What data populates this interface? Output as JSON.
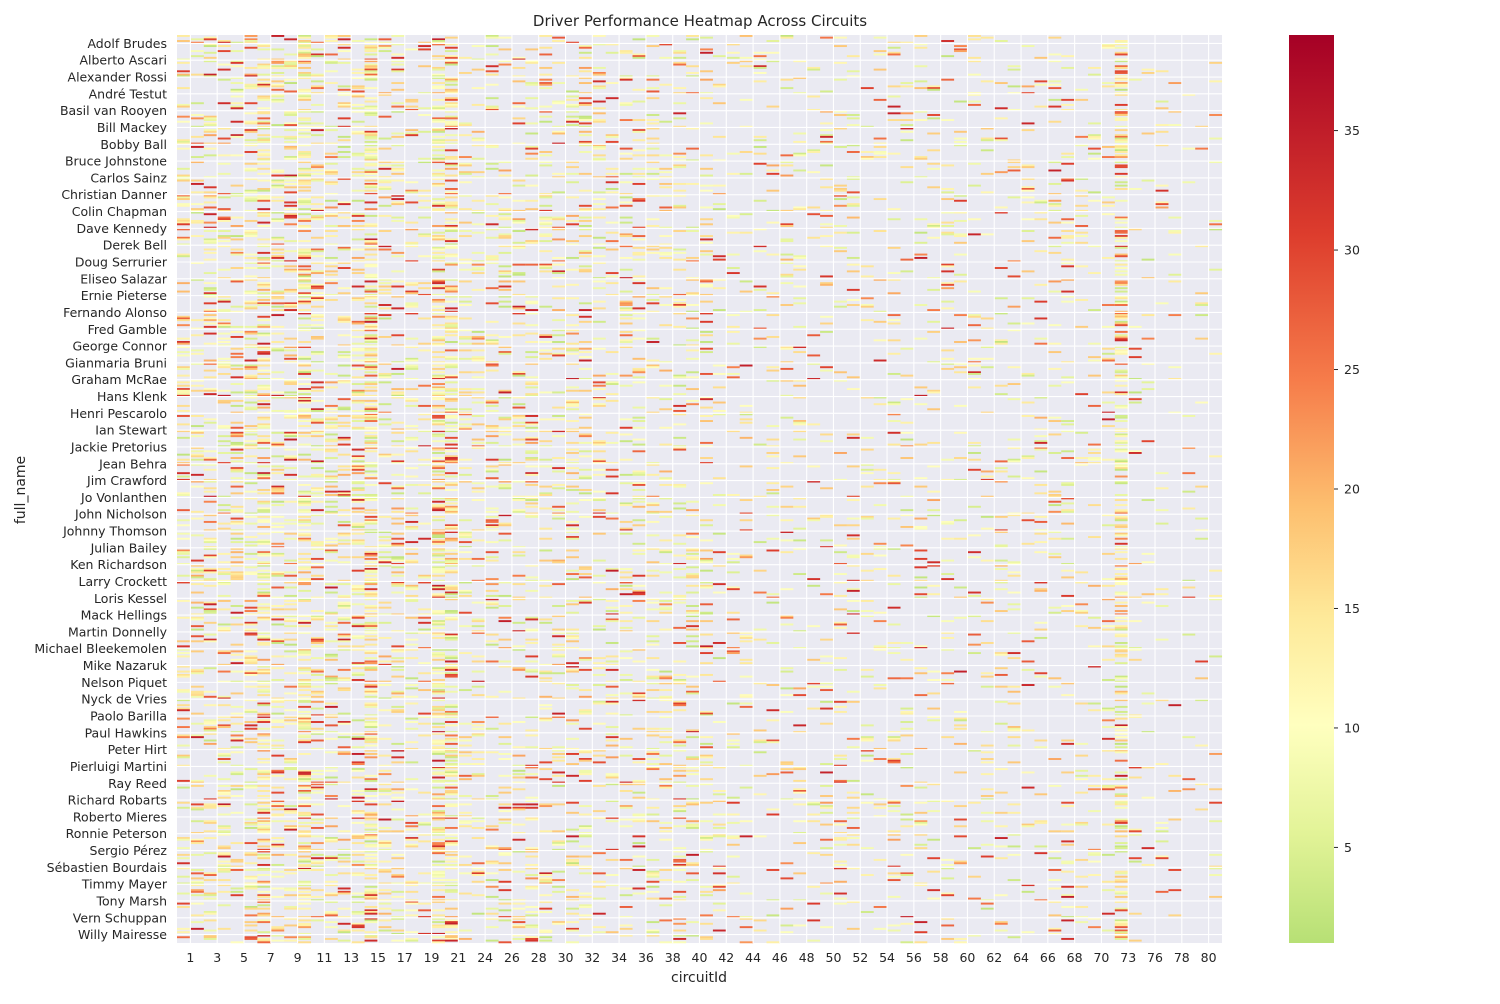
{
  "chart_data": {
    "type": "heatmap",
    "title": "Driver Performance Heatmap Across Circuits",
    "xlabel": "circuitId",
    "ylabel": "full_name",
    "x_tick_labels": [
      "1",
      "3",
      "5",
      "7",
      "9",
      "11",
      "13",
      "15",
      "17",
      "19",
      "21",
      "24",
      "26",
      "28",
      "30",
      "32",
      "34",
      "36",
      "38",
      "40",
      "42",
      "44",
      "46",
      "48",
      "50",
      "52",
      "54",
      "56",
      "58",
      "60",
      "62",
      "64",
      "66",
      "68",
      "70",
      "73",
      "76",
      "78",
      "80"
    ],
    "y_tick_labels": [
      "Adolf Brudes",
      "Alberto Ascari",
      "Alexander Rossi",
      "André Testut",
      "Basil van Rooyen",
      "Bill Mackey",
      "Bobby Ball",
      "Bruce Johnstone",
      "Carlos Sainz",
      "Christian Danner",
      "Colin Chapman",
      "Dave Kennedy",
      "Derek Bell",
      "Doug Serrurier",
      "Eliseo Salazar",
      "Ernie Pieterse",
      "Fernando Alonso",
      "Fred Gamble",
      "George Connor",
      "Gianmaria Bruni",
      "Graham McRae",
      "Hans Klenk",
      "Henri Pescarolo",
      "Ian Stewart",
      "Jackie Pretorius",
      "Jean Behra",
      "Jim Crawford",
      "Jo Vonlanthen",
      "John Nicholson",
      "Johnny Thomson",
      "Julian Bailey",
      "Ken Richardson",
      "Larry Crockett",
      "Loris Kessel",
      "Mack Hellings",
      "Martin Donnelly",
      "Michael Bleekemolen",
      "Mike Nazaruk",
      "Nelson Piquet",
      "Nyck de Vries",
      "Paolo Barilla",
      "Paul Hawkins",
      "Peter Hirt",
      "Pierluigi Martini",
      "Ray Reed",
      "Richard Robarts",
      "Roberto Mieres",
      "Ronnie Peterson",
      "Sergio Pérez",
      "Sébastien Bourdais",
      "Timmy Mayer",
      "Tony Marsh",
      "Vern Schuppan",
      "Willy Mairesse"
    ],
    "n_circuits": 78,
    "n_drivers": 540,
    "colorbar": {
      "colormap": "RdYlGn_r",
      "vmin": 1,
      "vmax": 39,
      "ticks": [
        "5",
        "10",
        "15",
        "20",
        "25",
        "30",
        "35"
      ]
    },
    "grid": true,
    "missing_color": "#eaeaf2",
    "hot_circuits": [
      6,
      9,
      14,
      20,
      19,
      70
    ],
    "cold_circuits": [
      15,
      16,
      17,
      71,
      72,
      73,
      74,
      75,
      76,
      77,
      78,
      79
    ]
  }
}
